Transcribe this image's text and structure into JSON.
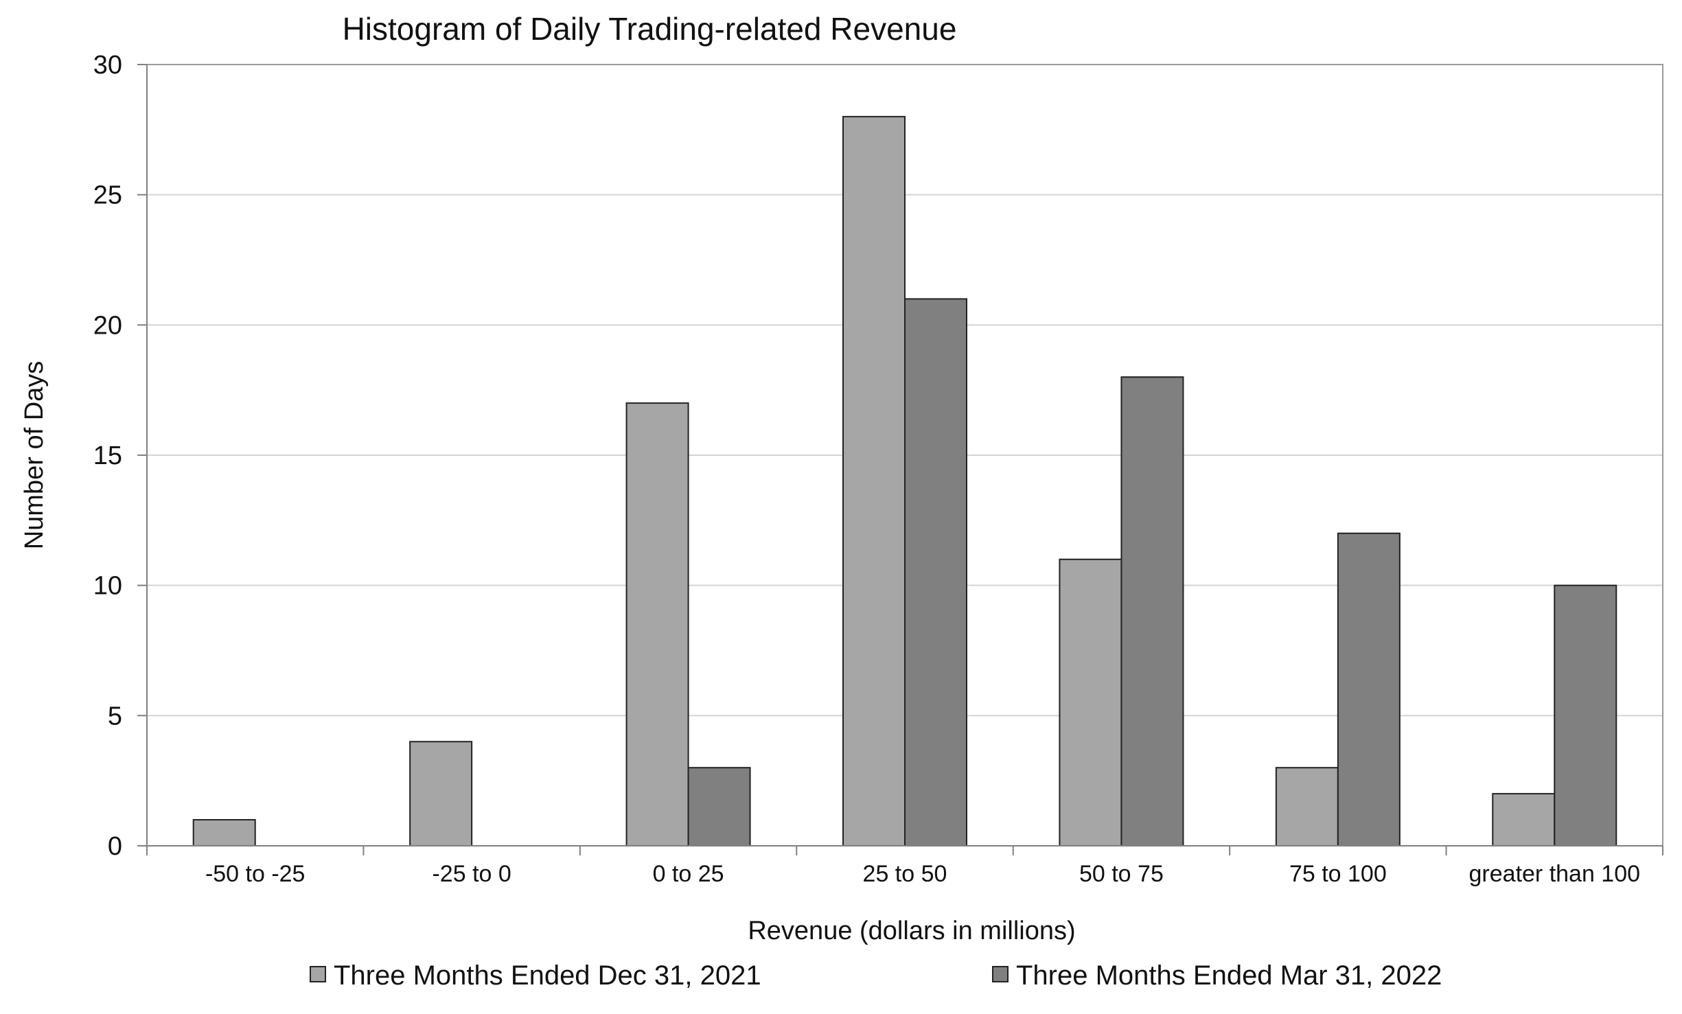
{
  "chart_data": {
    "type": "bar",
    "title": "Histogram of Daily Trading-related Revenue",
    "xlabel": "Revenue (dollars in millions)",
    "ylabel": "Number of Days",
    "categories": [
      "-50 to -25",
      "-25 to 0",
      "0 to 25",
      "25 to 50",
      "50 to 75",
      "75 to 100",
      "greater than 100"
    ],
    "series": [
      {
        "name": "Three Months Ended Dec 31, 2021",
        "color": "#a6a6a6",
        "values": [
          1,
          4,
          17,
          28,
          11,
          3,
          2
        ]
      },
      {
        "name": "Three Months Ended Mar 31, 2022",
        "color": "#808080",
        "values": [
          0,
          0,
          3,
          21,
          18,
          12,
          10
        ]
      }
    ],
    "ylim": [
      0,
      30
    ],
    "yticks": [
      "0",
      "5",
      "10",
      "15",
      "20",
      "25",
      "30"
    ],
    "grid": true,
    "legend_position": "bottom"
  }
}
